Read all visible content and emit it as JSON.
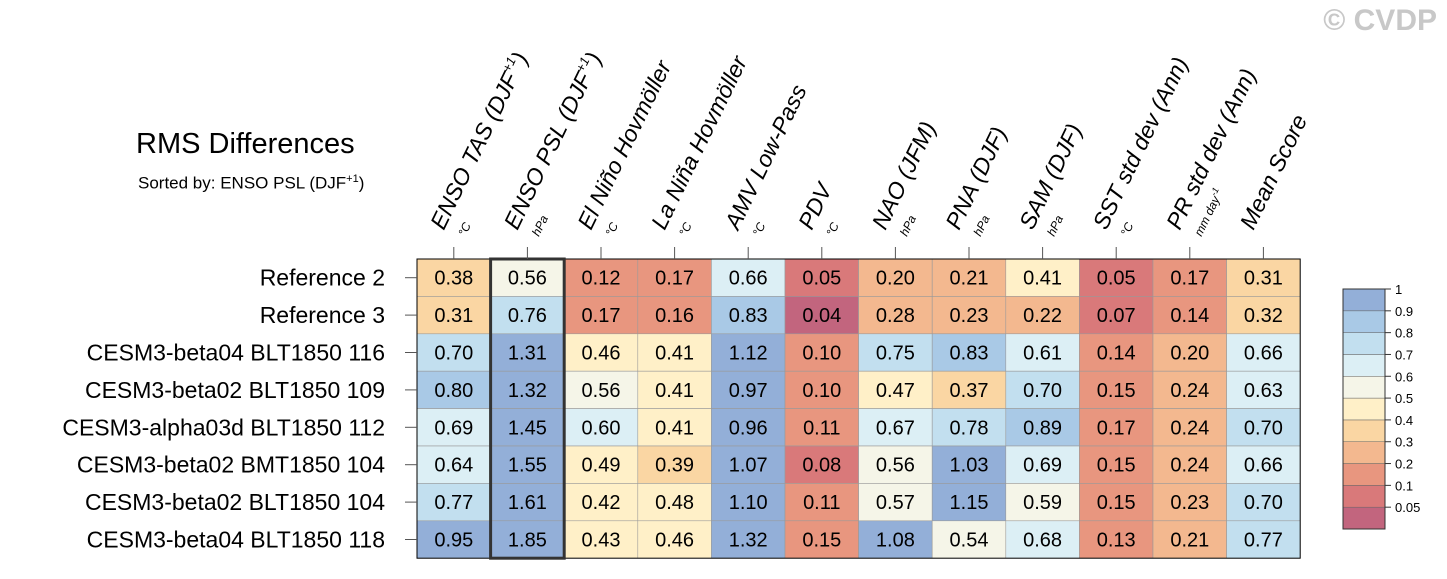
{
  "watermark": "© CVDP",
  "title": "RMS Differences",
  "subtitle": {
    "prefix": "Sorted by: ENSO PSL (DJF",
    "sup": "+1",
    "suffix": ")"
  },
  "colors": {
    "scale": [
      "#c2657e",
      "#d9797a",
      "#e8967f",
      "#f3b88f",
      "#fad6a3",
      "#fff0c8",
      "#f5f5e8",
      "#dceff5",
      "#c2dfef",
      "#a9c9e6",
      "#93afd8"
    ],
    "highlight_border": "#333333",
    "grid_line": "#999999"
  },
  "chart_data": {
    "type": "heatmap",
    "title": "RMS Differences",
    "sorted_by": "ENSO PSL (DJF+1)",
    "highlight_column": 1,
    "columns": [
      {
        "name": "ENSO TAS (DJF",
        "sup": "+1",
        "close": ")",
        "unit": "°C"
      },
      {
        "name": "ENSO PSL (DJF",
        "sup": "+1",
        "close": ")",
        "unit": "hPa"
      },
      {
        "name": "El Niño Hovmöller",
        "unit": "°C"
      },
      {
        "name": "La Niña Hovmöller",
        "unit": "°C"
      },
      {
        "name": "AMV Low-Pass",
        "unit": "°C"
      },
      {
        "name": "PDV",
        "unit": "°C"
      },
      {
        "name": "NAO (JFM)",
        "unit": "hPa"
      },
      {
        "name": "PNA (DJF)",
        "unit": "hPa"
      },
      {
        "name": "SAM (DJF)",
        "unit": "hPa"
      },
      {
        "name": "SST std dev (Ann)",
        "unit": "°C"
      },
      {
        "name": "PR std dev (Ann)",
        "unit": "mm day",
        "unit_sup": "-1"
      },
      {
        "name": "Mean Score",
        "unit": ""
      }
    ],
    "rows": [
      {
        "label": "Reference 2",
        "values": [
          "0.38",
          "0.56",
          "0.12",
          "0.17",
          "0.66",
          "0.05",
          "0.20",
          "0.21",
          "0.41",
          "0.05",
          "0.17",
          "0.31"
        ]
      },
      {
        "label": "Reference 3",
        "values": [
          "0.31",
          "0.76",
          "0.17",
          "0.16",
          "0.83",
          "0.04",
          "0.28",
          "0.23",
          "0.22",
          "0.07",
          "0.14",
          "0.32"
        ]
      },
      {
        "label": "CESM3-beta04 BLT1850 116",
        "values": [
          "0.70",
          "1.31",
          "0.46",
          "0.41",
          "1.12",
          "0.10",
          "0.75",
          "0.83",
          "0.61",
          "0.14",
          "0.20",
          "0.66"
        ]
      },
      {
        "label": "CESM3-beta02 BLT1850 109",
        "values": [
          "0.80",
          "1.32",
          "0.56",
          "0.41",
          "0.97",
          "0.10",
          "0.47",
          "0.37",
          "0.70",
          "0.15",
          "0.24",
          "0.63"
        ]
      },
      {
        "label": "CESM3-alpha03d BLT1850 112",
        "values": [
          "0.69",
          "1.45",
          "0.60",
          "0.41",
          "0.96",
          "0.11",
          "0.67",
          "0.78",
          "0.89",
          "0.17",
          "0.24",
          "0.70"
        ]
      },
      {
        "label": "CESM3-beta02 BMT1850 104",
        "values": [
          "0.64",
          "1.55",
          "0.49",
          "0.39",
          "1.07",
          "0.08",
          "0.56",
          "1.03",
          "0.69",
          "0.15",
          "0.24",
          "0.66"
        ]
      },
      {
        "label": "CESM3-beta02 BLT1850 104",
        "values": [
          "0.77",
          "1.61",
          "0.42",
          "0.48",
          "1.10",
          "0.11",
          "0.57",
          "1.15",
          "0.59",
          "0.15",
          "0.23",
          "0.70"
        ]
      },
      {
        "label": "CESM3-beta04 BLT1850 118",
        "values": [
          "0.95",
          "1.85",
          "0.43",
          "0.46",
          "1.32",
          "0.15",
          "1.08",
          "0.54",
          "0.68",
          "0.13",
          "0.21",
          "0.77"
        ]
      }
    ],
    "legend": {
      "placement": "right",
      "levels": [
        0.05,
        0.1,
        0.2,
        0.3,
        0.4,
        0.5,
        0.6,
        0.7,
        0.8,
        0.9,
        1
      ],
      "labels": [
        "0.05",
        "0.1",
        "0.2",
        "0.3",
        "0.4",
        "0.5",
        "0.6",
        "0.7",
        "0.8",
        "0.9",
        "1"
      ]
    }
  }
}
